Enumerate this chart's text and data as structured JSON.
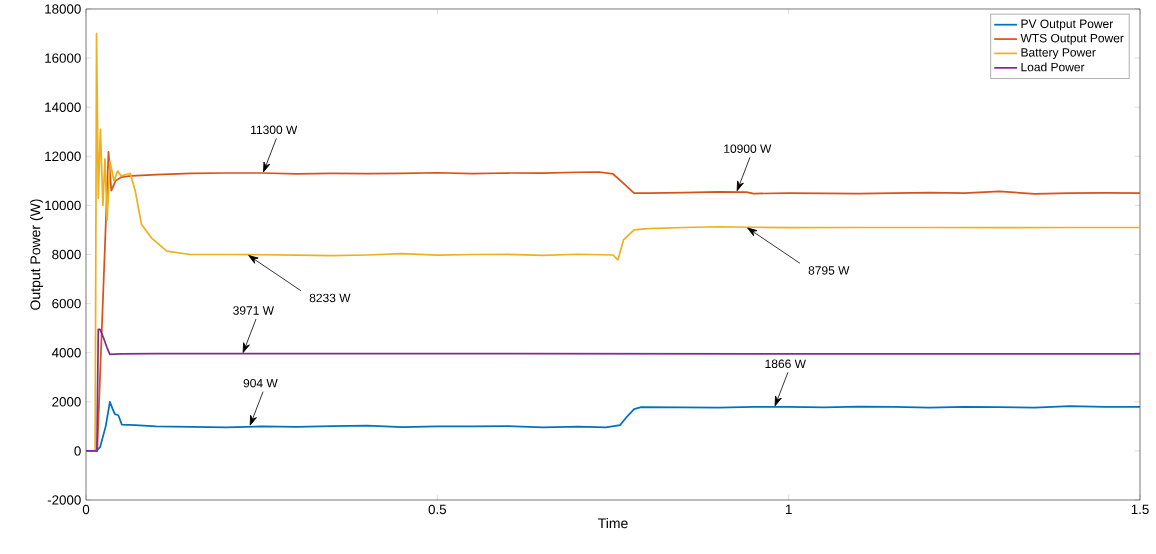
{
  "chart_data": {
    "type": "line",
    "xlabel": "Time",
    "ylabel": "Output Power (W)",
    "xlim": [
      0,
      1.5
    ],
    "ylim": [
      -2000,
      18000
    ],
    "xticks": [
      0,
      0.5,
      1,
      1.5
    ],
    "yticks": [
      -2000,
      0,
      2000,
      4000,
      6000,
      8000,
      10000,
      12000,
      14000,
      16000,
      18000
    ],
    "legend": "top right",
    "grid": false,
    "series": [
      {
        "name": "PV Output Power",
        "color": "#0072bd",
        "x": [
          0,
          0.015,
          0.02,
          0.028,
          0.034,
          0.038,
          0.041,
          0.046,
          0.051,
          0.07,
          0.1,
          0.15,
          0.2,
          0.25,
          0.3,
          0.35,
          0.4,
          0.45,
          0.5,
          0.55,
          0.6,
          0.65,
          0.7,
          0.74,
          0.76,
          0.77,
          0.78,
          0.79,
          0.85,
          0.9,
          0.95,
          1.0,
          1.05,
          1.1,
          1.15,
          1.2,
          1.25,
          1.3,
          1.35,
          1.4,
          1.45,
          1.5
        ],
        "values": [
          0,
          0,
          150,
          1000,
          2000,
          1700,
          1500,
          1450,
          1070,
          1050,
          1000,
          980,
          960,
          1000,
          980,
          1010,
          1030,
          970,
          1000,
          1000,
          1010,
          960,
          990,
          960,
          1050,
          1400,
          1700,
          1780,
          1770,
          1760,
          1790,
          1790,
          1770,
          1800,
          1790,
          1760,
          1790,
          1780,
          1760,
          1820,
          1790,
          1790
        ]
      },
      {
        "name": "WTS Output Power",
        "color": "#d95319",
        "x": [
          0,
          0.016,
          0.032,
          0.036,
          0.042,
          0.05,
          0.065,
          0.1,
          0.15,
          0.2,
          0.25,
          0.3,
          0.35,
          0.4,
          0.45,
          0.5,
          0.55,
          0.6,
          0.65,
          0.7,
          0.73,
          0.75,
          0.765,
          0.78,
          0.8,
          0.85,
          0.9,
          0.94,
          0.95,
          1.0,
          1.1,
          1.2,
          1.25,
          1.3,
          1.35,
          1.4,
          1.45,
          1.5
        ],
        "values": [
          0,
          0,
          12180,
          10600,
          11000,
          11150,
          11200,
          11250,
          11300,
          11320,
          11320,
          11280,
          11300,
          11290,
          11300,
          11330,
          11290,
          11320,
          11310,
          11350,
          11360,
          11280,
          10900,
          10500,
          10500,
          10520,
          10550,
          10540,
          10480,
          10500,
          10480,
          10520,
          10500,
          10570,
          10470,
          10500,
          10510,
          10500
        ]
      },
      {
        "name": "Battery Power",
        "color": "#edb120",
        "x": [
          0,
          0.013,
          0.015,
          0.0175,
          0.0205,
          0.024,
          0.027,
          0.03,
          0.034,
          0.04,
          0.045,
          0.05,
          0.063,
          0.07,
          0.079,
          0.093,
          0.115,
          0.148,
          0.2,
          0.25,
          0.3,
          0.35,
          0.4,
          0.45,
          0.5,
          0.55,
          0.6,
          0.65,
          0.7,
          0.75,
          0.757,
          0.765,
          0.78,
          0.8,
          0.85,
          0.9,
          0.95,
          1.0,
          1.1,
          1.2,
          1.3,
          1.4,
          1.5
        ],
        "values": [
          0,
          0,
          17000,
          10300,
          13100,
          10000,
          11900,
          9400,
          11800,
          11000,
          11400,
          11200,
          11300,
          10600,
          9220,
          8680,
          8140,
          8000,
          8000,
          7990,
          7970,
          7950,
          7980,
          8040,
          7970,
          8000,
          8010,
          7960,
          8010,
          7980,
          7780,
          8600,
          9000,
          9050,
          9100,
          9130,
          9110,
          9090,
          9100,
          9100,
          9090,
          9100,
          9100
        ]
      },
      {
        "name": "Load Power",
        "color": "#7e2f8e",
        "x": [
          0,
          0.0155,
          0.0175,
          0.02,
          0.025,
          0.03,
          0.034,
          0.05,
          0.1,
          0.5,
          1.0,
          1.5
        ],
        "values": [
          0,
          0,
          4950,
          4950,
          4600,
          4200,
          3930,
          3950,
          3960,
          3960,
          3950,
          3950
        ]
      }
    ],
    "annotations": [
      {
        "text": "11300 W",
        "x": 0.252,
        "y": 11320
      },
      {
        "text": "10900 W",
        "x": 0.926,
        "y": 10550
      },
      {
        "text": "8233 W",
        "x": 0.23,
        "y": 7990
      },
      {
        "text": "8795 W",
        "x": 0.94,
        "y": 9110
      },
      {
        "text": "3971 W",
        "x": 0.223,
        "y": 3960
      },
      {
        "text": "904 W",
        "x": 0.233,
        "y": 1000
      },
      {
        "text": "1866 W",
        "x": 0.98,
        "y": 1790
      }
    ]
  }
}
